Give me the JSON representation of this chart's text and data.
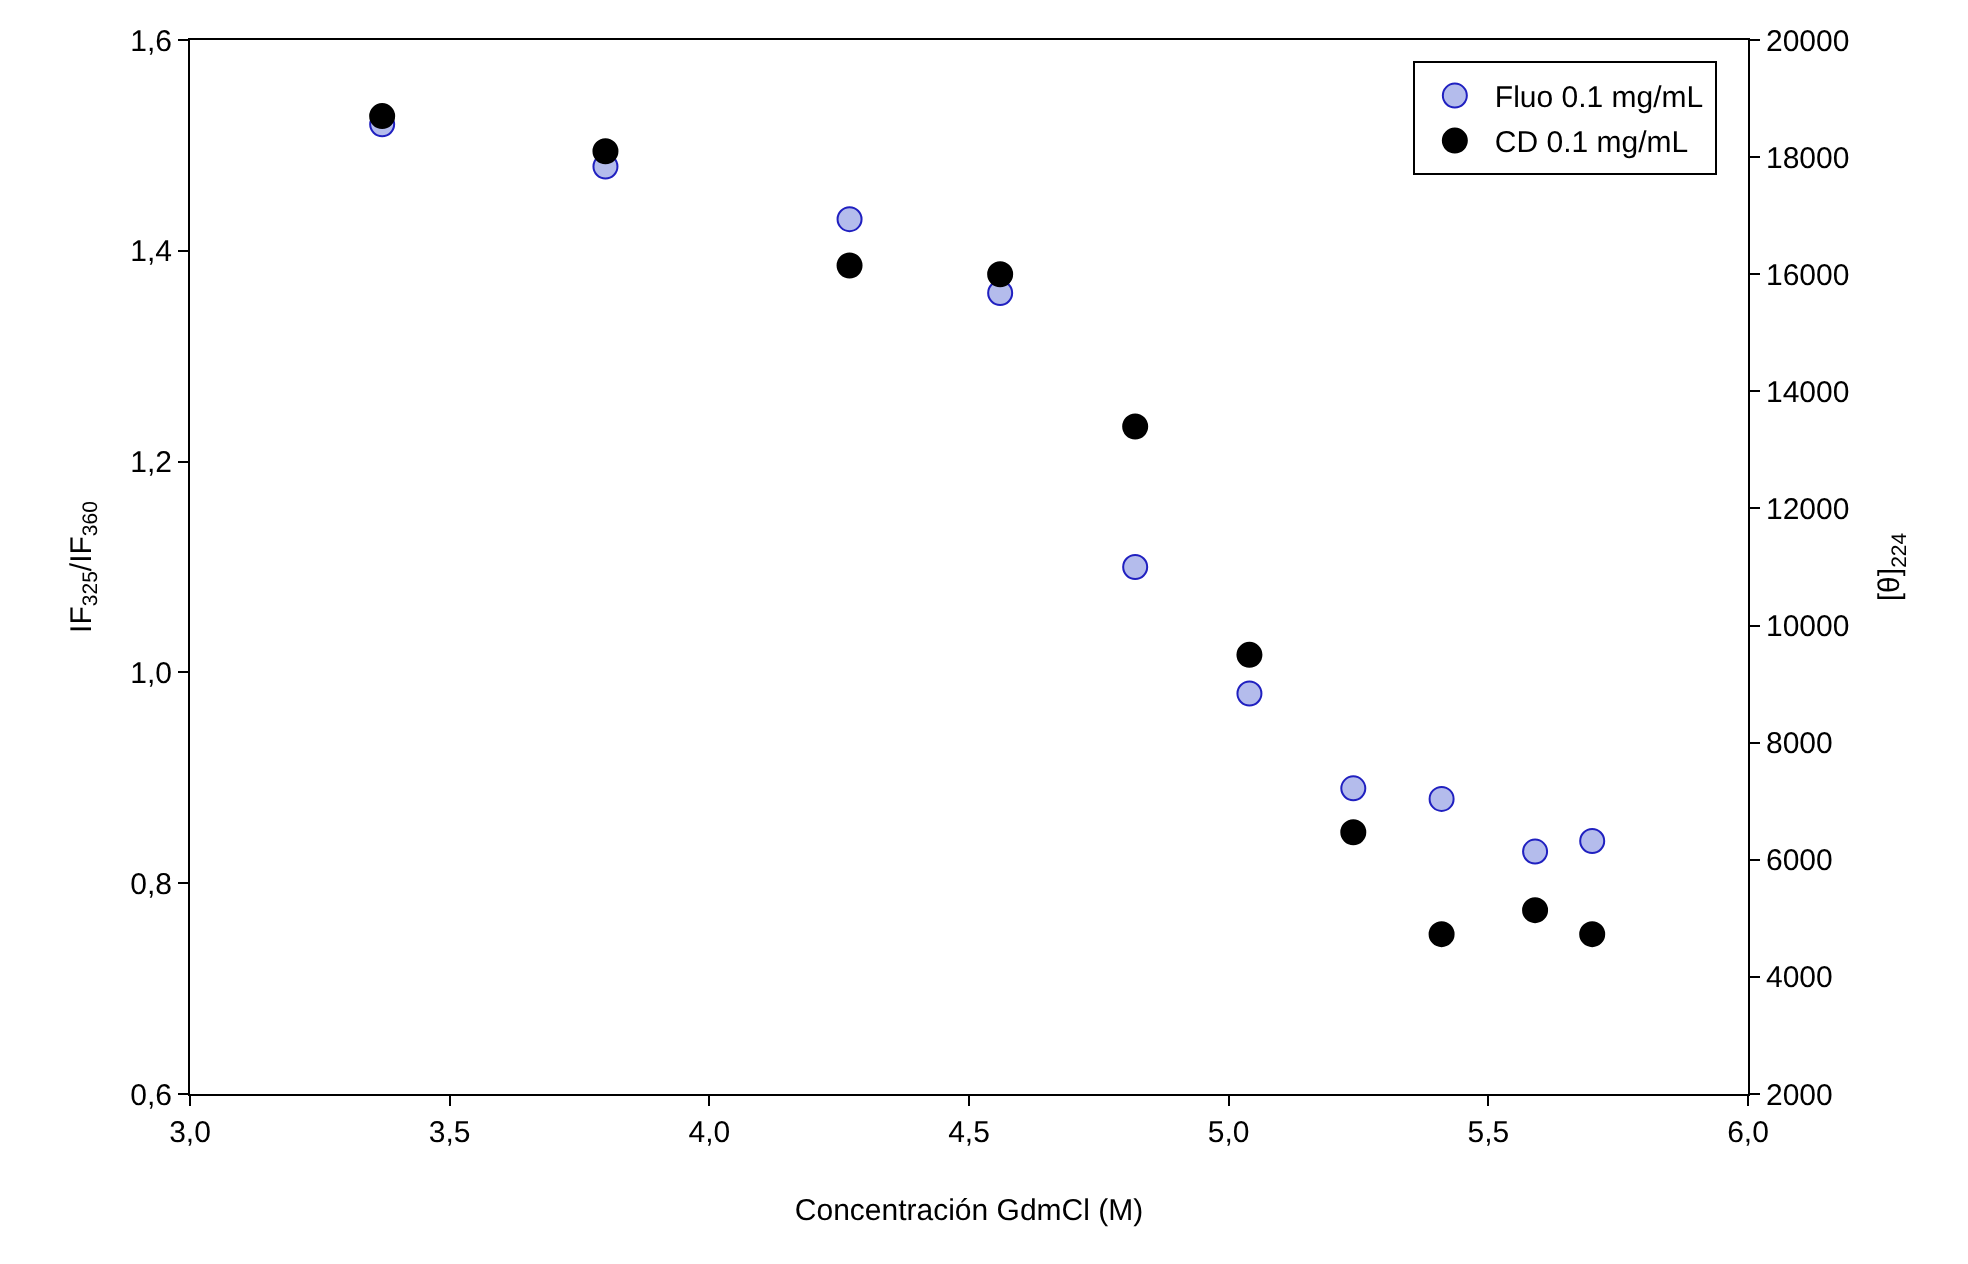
{
  "chart_data": {
    "type": "scatter",
    "xlabel": "Concentración GdmCl (M)",
    "ylabel": "IF$_{325}$/IF$_{360}$",
    "y2label": "[θ]$_{224}$",
    "x": [
      3.37,
      3.8,
      4.27,
      4.56,
      4.82,
      5.04,
      5.24,
      5.41,
      5.59,
      5.7
    ],
    "series": [
      {
        "name": "Fluo 0.1 mg/mL",
        "color": "#b4bcec",
        "values": [
          1.52,
          1.48,
          1.43,
          1.36,
          1.1,
          0.98,
          0.89,
          0.88,
          0.83,
          0.84
        ]
      },
      {
        "name": "CD 0.1 mg/mL",
        "color": "#000000",
        "axis": "y2",
        "values": [
          18700,
          18100,
          16150,
          16000,
          13400,
          9500,
          6470,
          4730,
          5140,
          4730
        ]
      }
    ],
    "xlim": [
      3.0,
      6.0
    ],
    "xticks": [
      {
        "value": 3.0,
        "label": "3,0"
      },
      {
        "value": 3.5,
        "label": "3,5"
      },
      {
        "value": 4.0,
        "label": "4,0"
      },
      {
        "value": 4.5,
        "label": "4,5"
      },
      {
        "value": 5.0,
        "label": "5,0"
      },
      {
        "value": 5.5,
        "label": "5,5"
      },
      {
        "value": 6.0,
        "label": "6,0"
      }
    ],
    "ylim": [
      0.6,
      1.6
    ],
    "yticks": [
      {
        "value": 0.6,
        "label": "0,6"
      },
      {
        "value": 0.8,
        "label": "0,8"
      },
      {
        "value": 1.0,
        "label": "1,0"
      },
      {
        "value": 1.2,
        "label": "1,2"
      },
      {
        "value": 1.4,
        "label": "1,4"
      },
      {
        "value": 1.6,
        "label": "1,6"
      }
    ],
    "y2lim": [
      2000,
      20000
    ],
    "y2ticks": [
      2000,
      4000,
      6000,
      8000,
      10000,
      12000,
      14000,
      16000,
      18000,
      20000
    ],
    "marker": "circle",
    "legend": "top right"
  }
}
